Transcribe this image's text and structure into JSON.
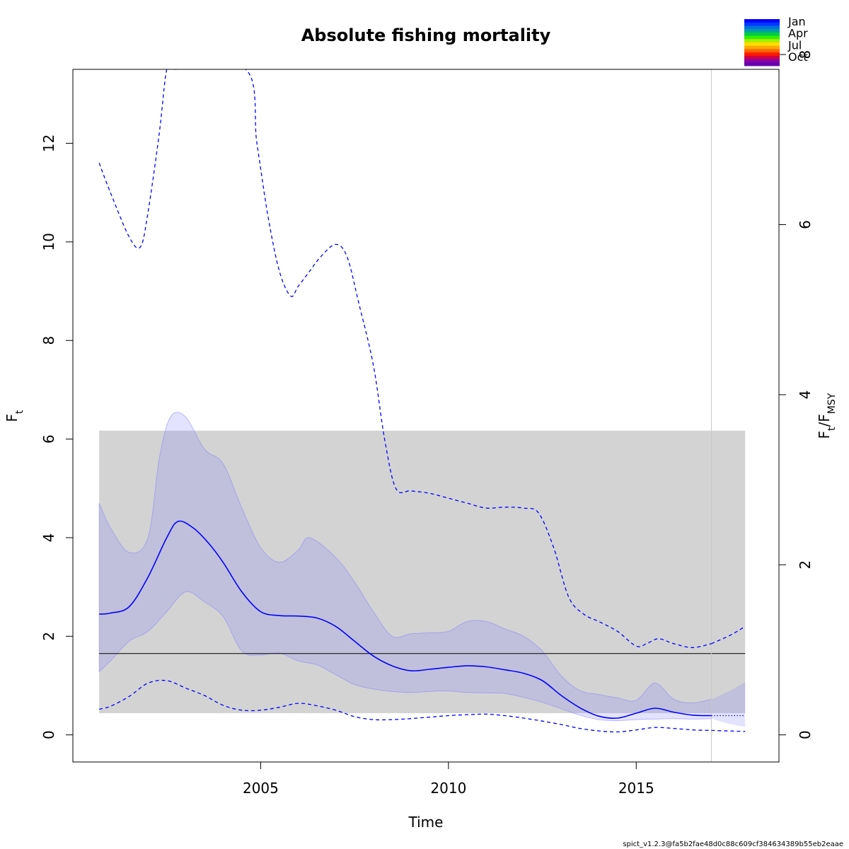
{
  "chart_data": {
    "type": "line",
    "title": "Absolute fishing mortality",
    "xlabel": "Time",
    "ylabel_main": "F",
    "ylabel_sub": "t",
    "y2label_main": "F",
    "y2label_sub1": "t",
    "y2label_sep": "/F",
    "y2label_sub2": "MSY",
    "xlim": [
      2000.0,
      2018.8
    ],
    "ylim": [
      -0.55,
      13.5
    ],
    "y2_scale": 1.725,
    "xticks": [
      {
        "value": 2005,
        "label": "2005"
      },
      {
        "value": 2010,
        "label": "2010"
      },
      {
        "value": 2015,
        "label": "2015"
      }
    ],
    "yticks": [
      {
        "value": 0,
        "label": "0"
      },
      {
        "value": 2,
        "label": "2"
      },
      {
        "value": 4,
        "label": "4"
      },
      {
        "value": 6,
        "label": "6"
      },
      {
        "value": 8,
        "label": "8"
      },
      {
        "value": 10,
        "label": "10"
      },
      {
        "value": 12,
        "label": "12"
      }
    ],
    "y2ticks": [
      {
        "value": 0,
        "label": "0"
      },
      {
        "value": 2,
        "label": "2"
      },
      {
        "value": 4,
        "label": "4"
      },
      {
        "value": 6,
        "label": "6"
      },
      {
        "value": 8,
        "label": "8"
      }
    ],
    "fmsy": 1.65,
    "fmsy_ci_band": {
      "x": [
        2000.7,
        2017.9
      ],
      "y": [
        0.44,
        6.17
      ]
    },
    "last_obs_time": 2017.0,
    "series": [
      {
        "role": "estimate",
        "x": [
          2000.7,
          2001.0,
          2001.5,
          2002.0,
          2002.5,
          2002.8,
          2003.2,
          2003.6,
          2004.0,
          2004.5,
          2005.0,
          2005.5,
          2006.0,
          2006.5,
          2007.0,
          2007.5,
          2008.0,
          2008.5,
          2009.0,
          2009.5,
          2010.0,
          2010.5,
          2011.0,
          2011.5,
          2012.0,
          2012.5,
          2013.0,
          2013.5,
          2014.0,
          2014.5,
          2015.0,
          2015.5,
          2016.0,
          2016.5,
          2017.0
        ],
        "y": [
          2.45,
          2.47,
          2.6,
          3.2,
          4.0,
          4.33,
          4.2,
          3.9,
          3.5,
          2.9,
          2.5,
          2.42,
          2.41,
          2.37,
          2.2,
          1.9,
          1.6,
          1.4,
          1.3,
          1.33,
          1.37,
          1.4,
          1.38,
          1.32,
          1.25,
          1.1,
          0.8,
          0.55,
          0.38,
          0.34,
          0.44,
          0.54,
          0.46,
          0.4,
          0.39
        ]
      },
      {
        "role": "estimate-upper-ci",
        "x": [
          2000.7,
          2001.0,
          2001.5,
          2002.0,
          2002.3,
          2002.6,
          2003.0,
          2003.5,
          2004.0,
          2004.5,
          2005.0,
          2005.5,
          2006.0,
          2006.3,
          2007.0,
          2007.5,
          2008.0,
          2008.5,
          2009.0,
          2009.5,
          2010.0,
          2010.5,
          2011.0,
          2011.5,
          2012.0,
          2012.5,
          2013.0,
          2013.5,
          2014.0,
          2014.5,
          2015.0,
          2015.5,
          2016.0,
          2016.5,
          2017.0
        ],
        "y": [
          4.7,
          4.2,
          3.7,
          4.0,
          5.6,
          6.45,
          6.45,
          5.8,
          5.5,
          4.6,
          3.8,
          3.5,
          3.75,
          4.0,
          3.6,
          3.1,
          2.5,
          2.0,
          2.05,
          2.07,
          2.1,
          2.3,
          2.3,
          2.15,
          2.0,
          1.7,
          1.2,
          0.9,
          0.82,
          0.75,
          0.7,
          1.05,
          0.72,
          0.65,
          0.72
        ]
      },
      {
        "role": "estimate-lower-ci",
        "x": [
          2000.7,
          2001.0,
          2001.5,
          2002.0,
          2002.5,
          2003.0,
          2003.5,
          2004.0,
          2004.5,
          2005.0,
          2005.5,
          2006.0,
          2006.5,
          2007.0,
          2007.5,
          2008.0,
          2008.5,
          2009.0,
          2009.5,
          2010.0,
          2010.5,
          2011.0,
          2011.5,
          2012.0,
          2012.5,
          2013.0,
          2013.5,
          2014.0,
          2014.5,
          2015.0,
          2015.5,
          2016.0,
          2016.5,
          2017.0
        ],
        "y": [
          1.28,
          1.5,
          1.9,
          2.1,
          2.5,
          2.9,
          2.7,
          2.4,
          1.7,
          1.62,
          1.66,
          1.5,
          1.42,
          1.22,
          1.02,
          0.93,
          0.88,
          0.86,
          0.88,
          0.89,
          0.86,
          0.85,
          0.84,
          0.76,
          0.66,
          0.53,
          0.4,
          0.31,
          0.29,
          0.31,
          0.32,
          0.33,
          0.32,
          0.33
        ]
      },
      {
        "role": "prediction",
        "x": [
          2017.0,
          2017.9
        ],
        "y": [
          0.39,
          0.39
        ]
      },
      {
        "role": "prediction-upper-ci",
        "x": [
          2017.0,
          2017.5,
          2017.9
        ],
        "y": [
          0.72,
          0.9,
          1.07
        ]
      },
      {
        "role": "prediction-lower-ci",
        "x": [
          2017.0,
          2017.5,
          2017.9
        ],
        "y": [
          0.33,
          0.22,
          0.16
        ]
      },
      {
        "role": "upper-95-dashed",
        "x": [
          2000.7,
          2001.0,
          2001.5,
          2001.8,
          2002.0,
          2002.3,
          2002.5,
          2002.7,
          2004.6,
          2004.9,
          2005.2,
          2005.5,
          2005.8,
          2006.0,
          2006.3,
          2006.6,
          2007.0,
          2007.3,
          2007.6,
          2008.0,
          2008.3,
          2008.6,
          2009.0,
          2009.5,
          2010.0,
          2010.5,
          2011.0,
          2011.5,
          2012.0,
          2012.4,
          2012.8,
          2013.2,
          2013.6,
          2014.0,
          2014.5,
          2015.0,
          2015.3,
          2015.6,
          2016.0,
          2016.5,
          2017.0
        ],
        "y": [
          11.6,
          11.0,
          10.1,
          9.9,
          10.6,
          12.2,
          13.5,
          13.5,
          13.5,
          12.0,
          10.5,
          9.4,
          8.9,
          9.1,
          9.4,
          9.7,
          9.95,
          9.7,
          8.8,
          7.5,
          6.0,
          5.0,
          4.95,
          4.9,
          4.8,
          4.7,
          4.6,
          4.62,
          4.6,
          4.5,
          3.8,
          2.8,
          2.45,
          2.3,
          2.1,
          1.8,
          1.86,
          1.95,
          1.85,
          1.77,
          1.85
        ]
      },
      {
        "role": "upper-95-dashed-prediction",
        "x": [
          2017.0,
          2017.5,
          2017.9
        ],
        "y": [
          1.85,
          2.02,
          2.2
        ]
      },
      {
        "role": "lower-95-dashed",
        "x": [
          2000.7,
          2001.0,
          2001.5,
          2002.0,
          2002.5,
          2003.0,
          2003.5,
          2004.0,
          2004.5,
          2005.0,
          2005.5,
          2006.0,
          2006.5,
          2007.0,
          2007.5,
          2008.0,
          2008.5,
          2009.0,
          2009.5,
          2010.0,
          2010.5,
          2011.0,
          2011.5,
          2012.0,
          2012.5,
          2013.0,
          2013.5,
          2014.0,
          2014.5,
          2015.0,
          2015.5,
          2016.0,
          2016.5,
          2017.0
        ],
        "y": [
          0.52,
          0.58,
          0.78,
          1.05,
          1.1,
          0.95,
          0.8,
          0.6,
          0.5,
          0.5,
          0.56,
          0.64,
          0.59,
          0.5,
          0.37,
          0.31,
          0.31,
          0.33,
          0.36,
          0.39,
          0.41,
          0.42,
          0.39,
          0.34,
          0.28,
          0.21,
          0.13,
          0.08,
          0.06,
          0.1,
          0.15,
          0.13,
          0.1,
          0.09
        ]
      },
      {
        "role": "lower-95-dashed-prediction",
        "x": [
          2017.0,
          2017.9
        ],
        "y": [
          0.09,
          0.07
        ]
      }
    ],
    "legend": {
      "placement": "top-right",
      "labels": [
        "Jan",
        "Apr",
        "Jul",
        "Oct"
      ],
      "color_steps": [
        "#0000ff",
        "#0038ff",
        "#0070e0",
        "#00a0a0",
        "#00cc44",
        "#33ee00",
        "#aaee00",
        "#ffdd00",
        "#ffaa00",
        "#ff6600",
        "#ff1a00",
        "#cc0044",
        "#8800aa",
        "#6600aa"
      ]
    },
    "colors": {
      "band_gray": "#d3d3d3",
      "ci_fill": "#8080ff",
      "estimate_line": "#0000ff",
      "fmsy_line": "#000000",
      "vline": "#c8c8c8"
    }
  },
  "footer": "spict_v1.2.3@fa5b2fae48d0c88c609cf384634389b55eb2eaae"
}
